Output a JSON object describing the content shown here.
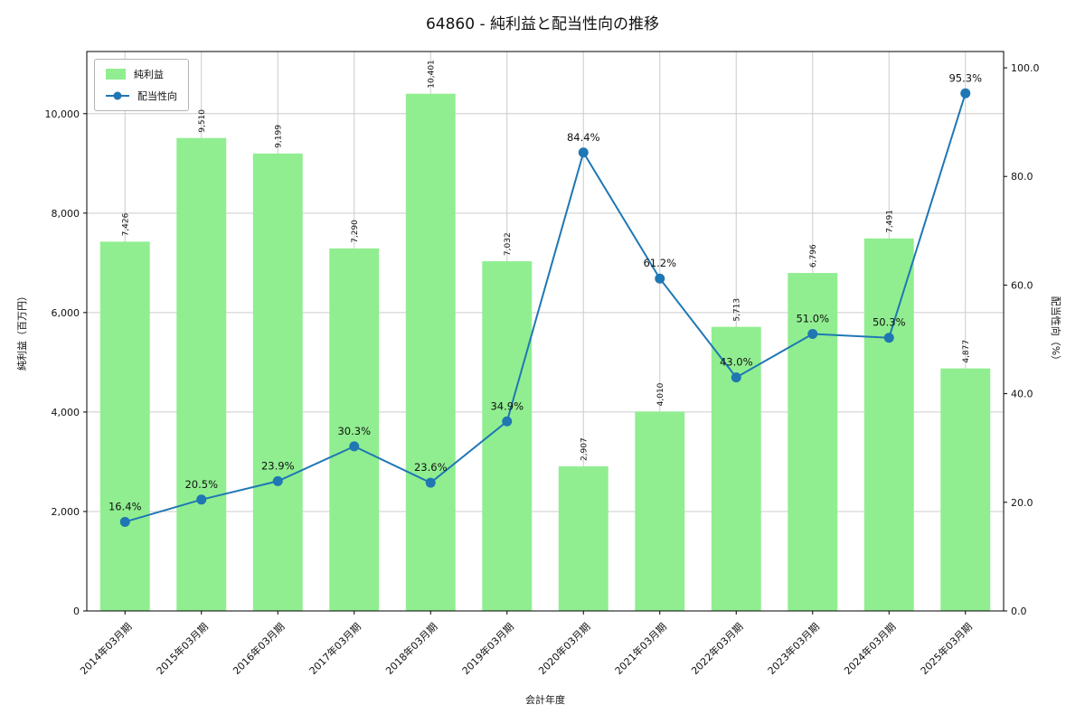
{
  "title": "64860 - 純利益と配当性向の推移",
  "chart_data": {
    "type": "bar+line",
    "title": "64860 - 純利益と配当性向の推移",
    "categories": [
      "2014年03月期",
      "2015年03月期",
      "2016年03月期",
      "2017年03月期",
      "2018年03月期",
      "2019年03月期",
      "2020年03月期",
      "2021年03月期",
      "2022年03月期",
      "2023年03月期",
      "2024年03月期",
      "2025年03月期"
    ],
    "series": [
      {
        "name": "純利益",
        "type": "bar",
        "axis": "left",
        "color": "#90ee90",
        "values": [
          7426,
          9510,
          9199,
          7290,
          10401,
          7032,
          2907,
          4010,
          5713,
          6796,
          7491,
          4877
        ],
        "value_labels": [
          "7,426",
          "9,510",
          "9,199",
          "7,290",
          "10,401",
          "7,032",
          "2,907",
          "4,010",
          "5,713",
          "6,796",
          "7,491",
          "4,877"
        ]
      },
      {
        "name": "配当性向",
        "type": "line",
        "axis": "right",
        "color": "#1f77b4",
        "values": [
          16.4,
          20.5,
          23.9,
          30.3,
          23.6,
          34.9,
          84.4,
          61.2,
          43.0,
          51.0,
          50.3,
          95.3
        ],
        "value_labels": [
          "16.4%",
          "20.5%",
          "23.9%",
          "30.3%",
          "23.6%",
          "34.9%",
          "84.4%",
          "61.2%",
          "43.0%",
          "51.0%",
          "50.3%",
          "95.3%"
        ]
      }
    ],
    "xlabel": "会計年度",
    "ylabel_left": "純利益（百万円）",
    "ylabel_right": "配当性向（%）",
    "ylim_left": [
      0,
      11250
    ],
    "ylim_right": [
      0,
      103
    ],
    "yticks_left": [
      0,
      2000,
      4000,
      6000,
      8000,
      10000
    ],
    "yticks_right": [
      0.0,
      20.0,
      40.0,
      60.0,
      80.0,
      100.0
    ],
    "grid": true,
    "legend_position": "upper-left",
    "colors": {
      "grid": "#cccccc",
      "spine": "#000000",
      "tick_text": "#111111",
      "bar_label_text": "#222222",
      "background": "#ffffff"
    }
  }
}
